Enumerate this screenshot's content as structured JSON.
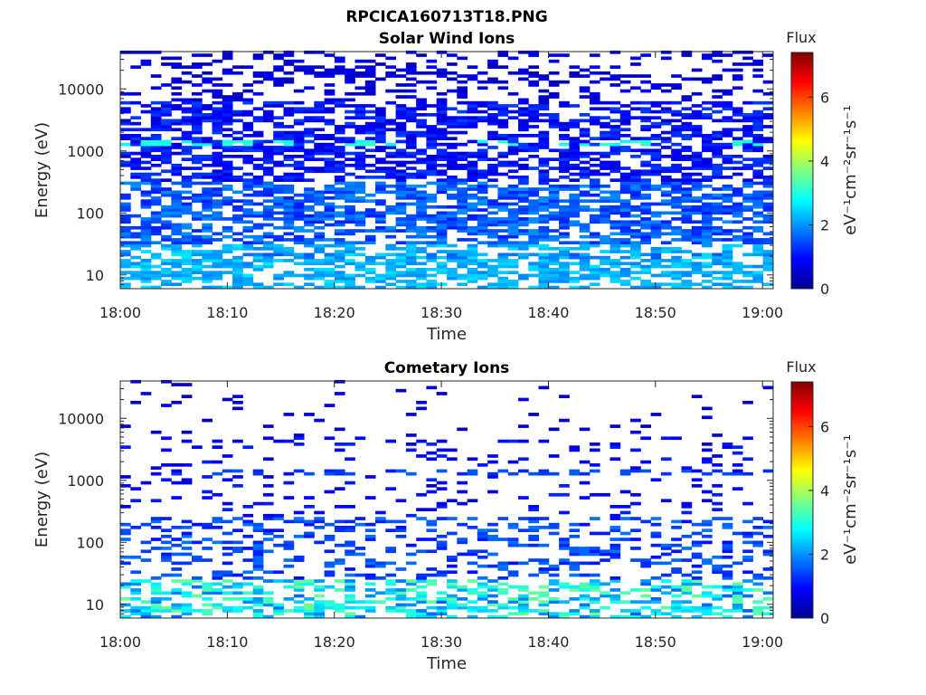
{
  "figure": {
    "title": "RPCICA160713T18.PNG"
  },
  "chart_data": [
    {
      "type": "heatmap",
      "title": "Solar Wind Ions",
      "xlabel": "Time",
      "ylabel": "Energy (eV)",
      "x_range": [
        "18:00",
        "19:01"
      ],
      "x_ticks": [
        "18:00",
        "18:10",
        "18:20",
        "18:30",
        "18:40",
        "18:50",
        "19:00"
      ],
      "y_scale": "log",
      "y_range": [
        6,
        40000
      ],
      "y_ticks": [
        "10",
        "100",
        "1000",
        "10000"
      ],
      "colorbar": {
        "label": "Flux",
        "unit": "eV⁻¹cm⁻²sr⁻¹s⁻¹",
        "range": [
          0,
          7.4
        ],
        "ticks": [
          "0",
          "2",
          "4",
          "6"
        ],
        "colormap": "jet"
      },
      "stripes": [
        {
          "energy": 1250,
          "flux": 3.0
        },
        {
          "energy": 10,
          "flux": 2.2
        },
        {
          "energy": 14,
          "flux": 2.1
        },
        {
          "energy": 20,
          "flux": 1.8
        }
      ],
      "bands": [
        {
          "emin": 6,
          "emax": 30,
          "flux_lo": 1.9,
          "flux_hi": 2.6,
          "density": 0.55
        },
        {
          "emin": 30,
          "emax": 300,
          "flux_lo": 1.1,
          "flux_hi": 2.0,
          "density": 0.65
        },
        {
          "emin": 300,
          "emax": 6000,
          "flux_lo": 0.6,
          "flux_hi": 1.4,
          "density": 0.6
        },
        {
          "emin": 6000,
          "emax": 40000,
          "flux_lo": 0.4,
          "flux_hi": 0.9,
          "density": 0.3
        }
      ]
    },
    {
      "type": "heatmap",
      "title": "Cometary Ions",
      "xlabel": "Time",
      "ylabel": "Energy (eV)",
      "x_range": [
        "18:00",
        "19:01"
      ],
      "x_ticks": [
        "18:00",
        "18:10",
        "18:20",
        "18:30",
        "18:40",
        "18:50",
        "19:00"
      ],
      "y_scale": "log",
      "y_range": [
        6,
        40000
      ],
      "y_ticks": [
        "10",
        "100",
        "1000",
        "10000"
      ],
      "colorbar": {
        "label": "Flux",
        "unit": "eV⁻¹cm⁻²sr⁻¹s⁻¹",
        "range": [
          0,
          7.4
        ],
        "ticks": [
          "0",
          "2",
          "4",
          "6"
        ],
        "colormap": "jet"
      },
      "stripes": [
        {
          "energy": 1250,
          "flux": 1.4
        },
        {
          "energy": 8,
          "flux": 2.6
        }
      ],
      "bands": [
        {
          "emin": 6,
          "emax": 25,
          "flux_lo": 1.6,
          "flux_hi": 3.6,
          "density": 0.45
        },
        {
          "emin": 25,
          "emax": 250,
          "flux_lo": 1.0,
          "flux_hi": 1.8,
          "density": 0.3
        },
        {
          "emin": 250,
          "emax": 5000,
          "flux_lo": 0.6,
          "flux_hi": 1.2,
          "density": 0.1
        },
        {
          "emin": 5000,
          "emax": 40000,
          "flux_lo": 0.4,
          "flux_hi": 0.8,
          "density": 0.05
        }
      ]
    }
  ]
}
